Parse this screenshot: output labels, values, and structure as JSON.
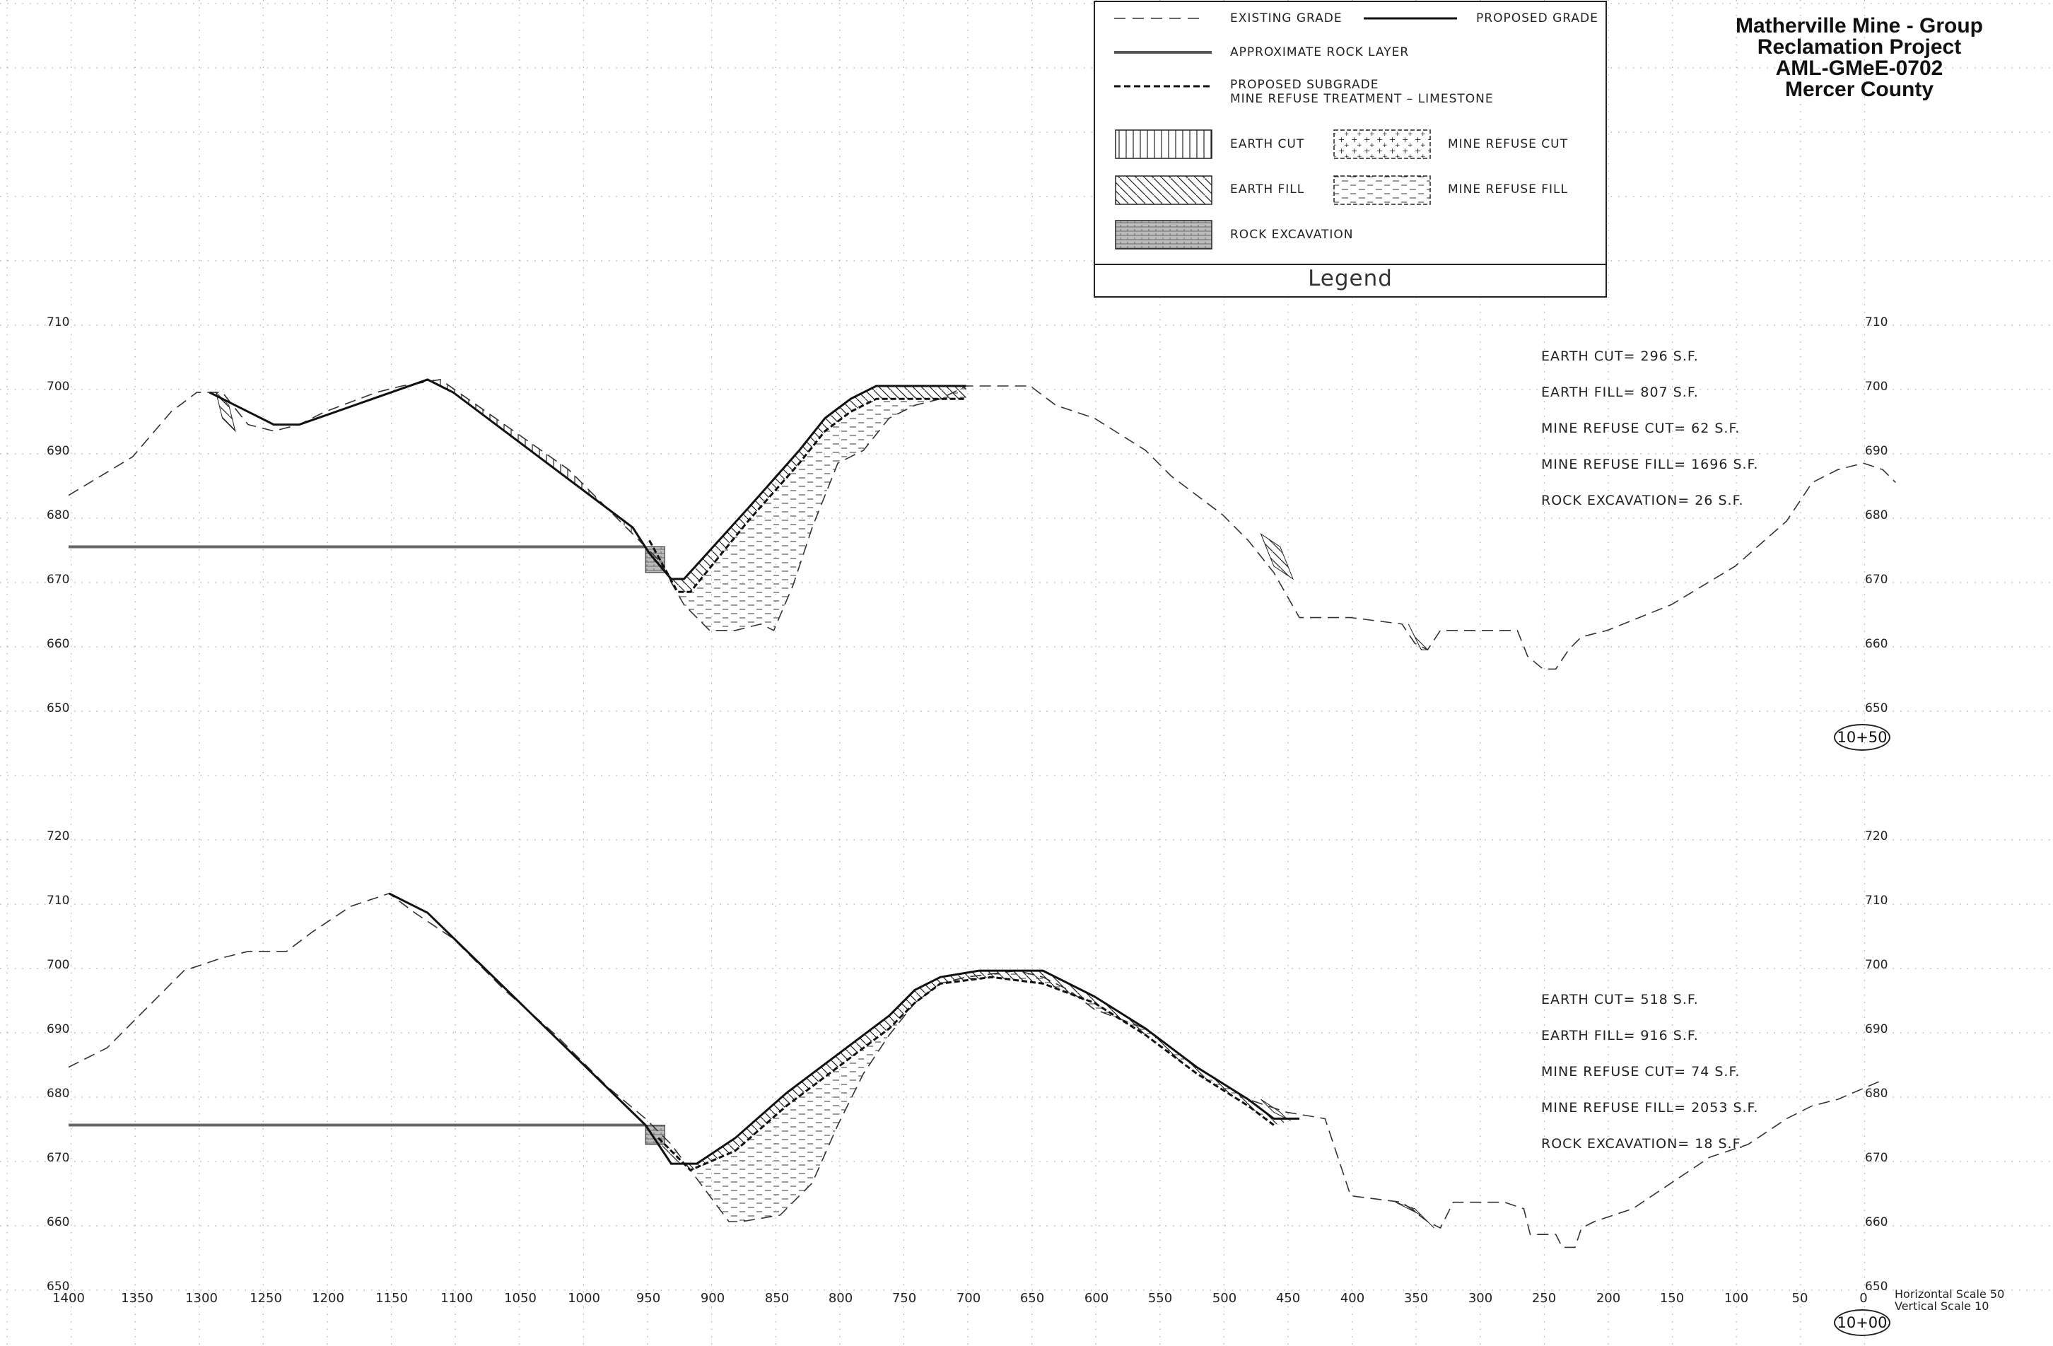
{
  "title": {
    "line1": "Matherville Mine - Group",
    "line2": "Reclamation Project",
    "line3": "AML-GMeE-0702",
    "line4": "Mercer County"
  },
  "legend": {
    "title": "Legend",
    "existing_grade": "EXISTING GRADE",
    "proposed_grade": "PROPOSED GRADE",
    "rock_layer": "APPROXIMATE ROCK LAYER",
    "subgrade_line1": "PROPOSED SUBGRADE",
    "subgrade_line2": "MINE REFUSE TREATMENT – LIMESTONE",
    "earth_cut": "EARTH CUT",
    "mine_refuse_cut": "MINE REFUSE CUT",
    "earth_fill": "EARTH FILL",
    "mine_refuse_fill": "MINE REFUSE FILL",
    "rock_excavation": "ROCK EXCAVATION"
  },
  "sections": [
    {
      "station": "10+50",
      "elevations": [
        "710",
        "700",
        "690",
        "680",
        "670",
        "660",
        "650"
      ],
      "quantities": [
        "EARTH CUT= 296 S.F.",
        "EARTH FILL= 807 S.F.",
        "MINE REFUSE CUT= 62 S.F.",
        "MINE REFUSE FILL= 1696 S.F.",
        "ROCK EXCAVATION= 26 S.F."
      ],
      "existing_grade": [
        [
          1400,
          683
        ],
        [
          1350,
          689
        ],
        [
          1320,
          696
        ],
        [
          1300,
          699
        ],
        [
          1280,
          699
        ],
        [
          1260,
          694
        ],
        [
          1240,
          693
        ],
        [
          1220,
          694
        ],
        [
          1200,
          696
        ],
        [
          1160,
          699
        ],
        [
          1140,
          700
        ],
        [
          1110,
          701
        ],
        [
          1060,
          694
        ],
        [
          1010,
          687
        ],
        [
          960,
          677
        ],
        [
          940,
          673
        ],
        [
          920,
          666
        ],
        [
          900,
          662
        ],
        [
          880,
          662
        ],
        [
          860,
          663
        ],
        [
          850,
          662
        ],
        [
          835,
          669
        ],
        [
          820,
          678
        ],
        [
          800,
          688
        ],
        [
          780,
          690
        ],
        [
          760,
          695
        ],
        [
          740,
          697
        ],
        [
          720,
          698
        ],
        [
          700,
          700
        ],
        [
          650,
          700
        ],
        [
          630,
          697
        ],
        [
          600,
          695
        ],
        [
          560,
          690
        ],
        [
          540,
          686
        ],
        [
          520,
          683
        ],
        [
          500,
          680
        ],
        [
          480,
          676
        ],
        [
          460,
          671
        ],
        [
          440,
          664
        ],
        [
          400,
          664
        ],
        [
          360,
          663
        ],
        [
          350,
          660
        ],
        [
          340,
          659
        ],
        [
          330,
          662
        ],
        [
          300,
          662
        ],
        [
          270,
          662
        ],
        [
          262,
          658
        ],
        [
          250,
          656
        ],
        [
          240,
          656
        ],
        [
          230,
          659
        ],
        [
          220,
          661
        ],
        [
          200,
          662
        ],
        [
          150,
          666
        ],
        [
          100,
          672
        ],
        [
          60,
          679
        ],
        [
          40,
          685
        ],
        [
          20,
          687
        ],
        [
          0,
          688
        ],
        [
          -15,
          687
        ],
        [
          -25,
          685
        ]
      ],
      "proposed_grade": [
        [
          1290,
          699
        ],
        [
          1270,
          697
        ],
        [
          1240,
          694
        ],
        [
          1220,
          694
        ],
        [
          1120,
          701
        ],
        [
          1100,
          699
        ],
        [
          960,
          678
        ],
        [
          947,
          674
        ],
        [
          930,
          670
        ],
        [
          920,
          670
        ],
        [
          870,
          681
        ],
        [
          830,
          690
        ],
        [
          810,
          695
        ],
        [
          790,
          698
        ],
        [
          770,
          700
        ],
        [
          700,
          700
        ]
      ],
      "subgrade": [
        [
          947,
          676
        ],
        [
          925,
          668
        ],
        [
          915,
          668
        ],
        [
          870,
          679
        ],
        [
          830,
          688
        ],
        [
          810,
          693
        ],
        [
          790,
          696
        ],
        [
          770,
          698
        ],
        [
          700,
          698
        ]
      ],
      "rock_layer": [
        1400,
        950,
        675
      ],
      "side_cuts": [
        [
          [
            1285,
            699
          ],
          [
            1275,
            697
          ],
          [
            1270,
            693
          ],
          [
            1280,
            695
          ]
        ],
        [
          [
            470,
            677
          ],
          [
            455,
            675
          ],
          [
            445,
            670
          ],
          [
            460,
            672
          ]
        ],
        [
          [
            355,
            663
          ],
          [
            345,
            659
          ],
          [
            340,
            659
          ],
          [
            350,
            661
          ]
        ]
      ],
      "rock_excavation": [
        [
          950,
          675
        ],
        [
          935,
          675
        ],
        [
          935,
          671
        ],
        [
          950,
          671
        ]
      ]
    },
    {
      "station": "10+00",
      "elevations": [
        "720",
        "710",
        "700",
        "690",
        "680",
        "670",
        "660",
        "650"
      ],
      "quantities": [
        "EARTH CUT= 518 S.F.",
        "EARTH FILL= 916 S.F.",
        "MINE REFUSE CUT= 74 S.F.",
        "MINE REFUSE FILL= 2053 S.F.",
        "ROCK EXCAVATION= 18 S.F."
      ],
      "existing_grade": [
        [
          1400,
          684
        ],
        [
          1370,
          687
        ],
        [
          1340,
          693
        ],
        [
          1310,
          699
        ],
        [
          1280,
          701
        ],
        [
          1260,
          702
        ],
        [
          1230,
          702
        ],
        [
          1210,
          705
        ],
        [
          1180,
          709
        ],
        [
          1150,
          711
        ],
        [
          1130,
          708
        ],
        [
          1100,
          704
        ],
        [
          1060,
          696
        ],
        [
          1020,
          689
        ],
        [
          980,
          681
        ],
        [
          950,
          676
        ],
        [
          930,
          672
        ],
        [
          915,
          668
        ],
        [
          900,
          664
        ],
        [
          885,
          660
        ],
        [
          875,
          660
        ],
        [
          845,
          661
        ],
        [
          820,
          666
        ],
        [
          800,
          675
        ],
        [
          780,
          683
        ],
        [
          760,
          689
        ],
        [
          740,
          694
        ],
        [
          720,
          697
        ],
        [
          700,
          698
        ],
        [
          660,
          699
        ],
        [
          640,
          698
        ],
        [
          620,
          696
        ],
        [
          600,
          693
        ],
        [
          560,
          690
        ],
        [
          520,
          684
        ],
        [
          480,
          679
        ],
        [
          450,
          677
        ],
        [
          420,
          676
        ],
        [
          400,
          664
        ],
        [
          360,
          663
        ],
        [
          340,
          660
        ],
        [
          330,
          659
        ],
        [
          320,
          663
        ],
        [
          280,
          663
        ],
        [
          265,
          662
        ],
        [
          260,
          658
        ],
        [
          250,
          658
        ],
        [
          240,
          658
        ],
        [
          235,
          656
        ],
        [
          225,
          656
        ],
        [
          220,
          659
        ],
        [
          210,
          660
        ],
        [
          180,
          662
        ],
        [
          150,
          666
        ],
        [
          120,
          670
        ],
        [
          90,
          672
        ],
        [
          60,
          676
        ],
        [
          40,
          678
        ],
        [
          20,
          679
        ],
        [
          -15,
          682
        ]
      ],
      "proposed_grade": [
        [
          1150,
          711
        ],
        [
          1120,
          708
        ],
        [
          950,
          675
        ],
        [
          930,
          669
        ],
        [
          910,
          669
        ],
        [
          880,
          673
        ],
        [
          840,
          680
        ],
        [
          800,
          686
        ],
        [
          760,
          692
        ],
        [
          740,
          696
        ],
        [
          720,
          698
        ],
        [
          690,
          699
        ],
        [
          640,
          699
        ],
        [
          600,
          695
        ],
        [
          560,
          690
        ],
        [
          520,
          684
        ],
        [
          480,
          679
        ],
        [
          460,
          676
        ],
        [
          440,
          676
        ]
      ],
      "subgrade": [
        [
          940,
          673
        ],
        [
          915,
          668
        ],
        [
          880,
          671
        ],
        [
          840,
          678
        ],
        [
          800,
          684
        ],
        [
          760,
          690
        ],
        [
          740,
          694
        ],
        [
          720,
          697
        ],
        [
          680,
          698
        ],
        [
          640,
          697
        ],
        [
          600,
          694
        ],
        [
          560,
          689
        ],
        [
          520,
          683
        ],
        [
          480,
          678
        ],
        [
          460,
          675
        ]
      ],
      "rock_layer": [
        1400,
        950,
        675
      ],
      "side_cuts": [
        [
          [
            365,
            663
          ],
          [
            350,
            662
          ],
          [
            335,
            659
          ],
          [
            345,
            661
          ]
        ],
        [
          [
            470,
            679
          ],
          [
            455,
            677
          ],
          [
            450,
            676
          ],
          [
            460,
            677
          ]
        ]
      ],
      "rock_excavation": [
        [
          950,
          675
        ],
        [
          935,
          675
        ],
        [
          935,
          672
        ],
        [
          950,
          672
        ]
      ]
    }
  ],
  "x_axis": {
    "ticks": [
      "1400",
      "1350",
      "1300",
      "1250",
      "1200",
      "1150",
      "1100",
      "1050",
      "1000",
      "950",
      "900",
      "850",
      "800",
      "750",
      "700",
      "650",
      "600",
      "550",
      "500",
      "450",
      "400",
      "350",
      "300",
      "250",
      "200",
      "150",
      "100",
      "50",
      "0"
    ]
  },
  "scale_note": {
    "horizontal": "Horizontal Scale 50",
    "vertical": "Vertical Scale 10"
  }
}
